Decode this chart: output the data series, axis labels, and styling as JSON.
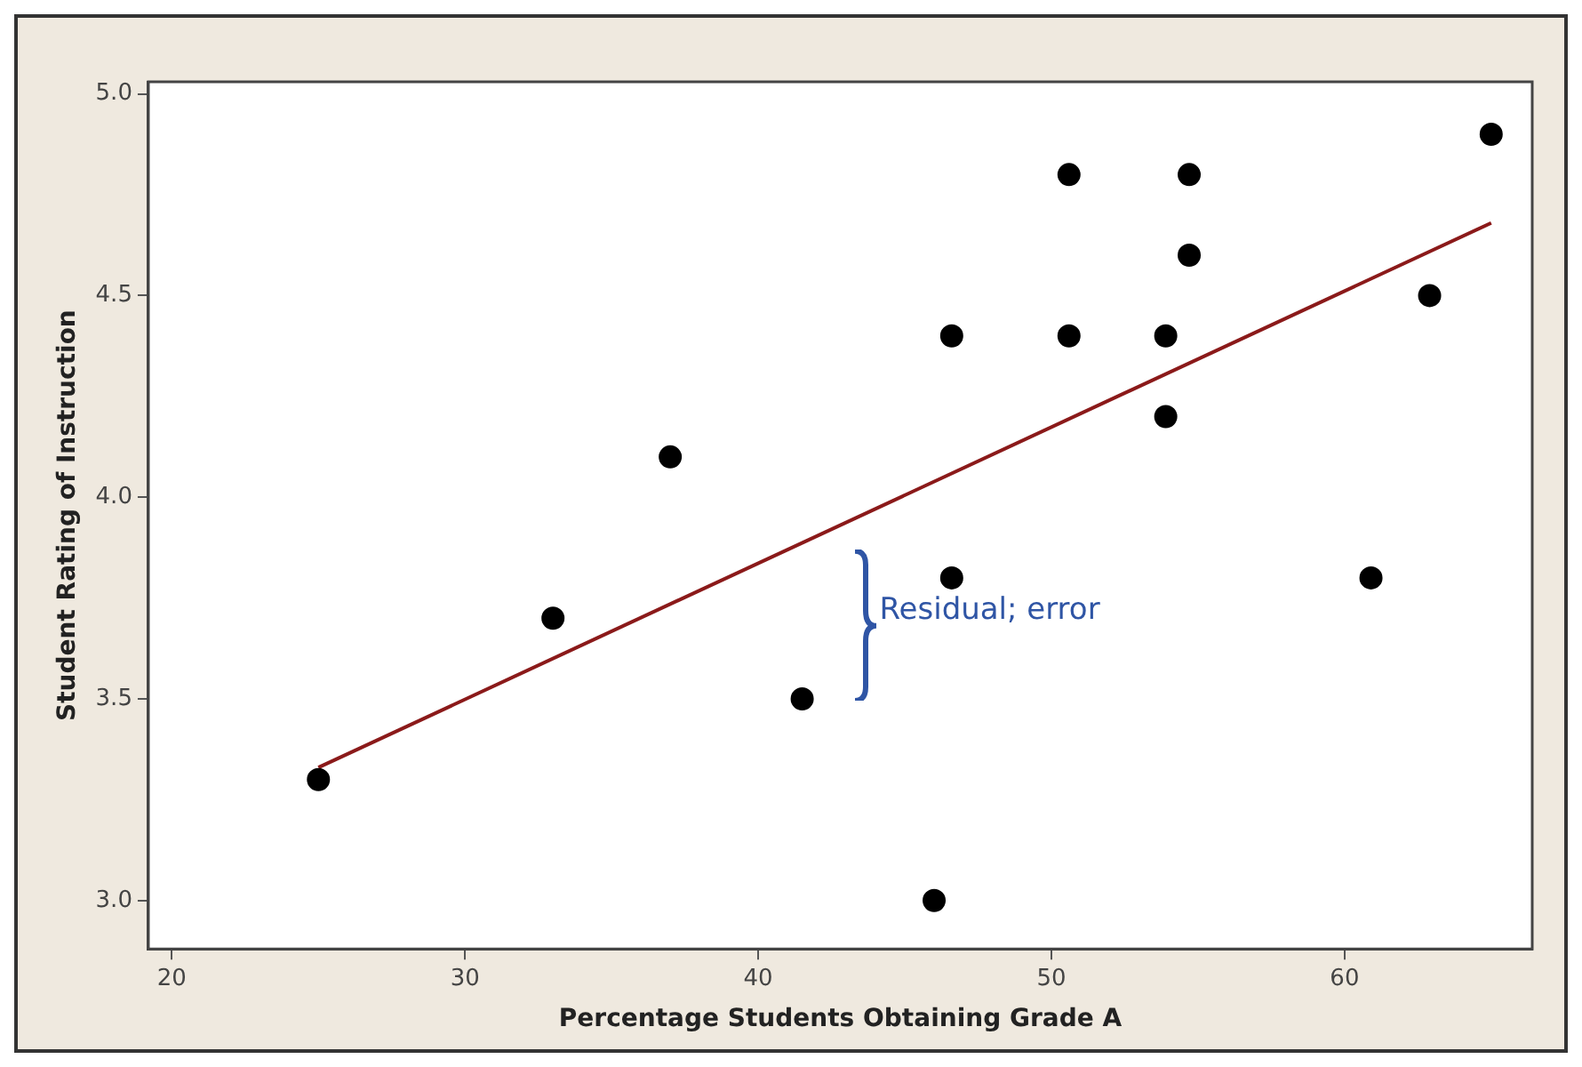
{
  "chart_data": {
    "type": "scatter",
    "xlabel": "Percentage Students Obtaining Grade A",
    "ylabel": "Student Rating of Instruction",
    "xlim": [
      19.2,
      66.4
    ],
    "xticks": [
      20,
      30,
      40,
      50,
      60
    ],
    "ylim": [
      2.88,
      5.03
    ],
    "yticks": [
      {
        "value": 3,
        "label": "3.0"
      },
      {
        "value": 3.5,
        "label": "3.5"
      },
      {
        "value": 4,
        "label": "4.0"
      },
      {
        "value": 4.5,
        "label": "4.5"
      },
      {
        "value": 5,
        "label": "5.0"
      }
    ],
    "grid": false,
    "legend": false,
    "marker": "circle",
    "series": [
      {
        "color": "#000000",
        "x": [
          25,
          33,
          37,
          41.5,
          46,
          46.6,
          46.6,
          50.6,
          50.6,
          53.9,
          53.9,
          54.7,
          54.7,
          60.9,
          62.9,
          65
        ],
        "values": [
          3.3,
          3.7,
          4.1,
          3.5,
          3.0,
          3.8,
          4.4,
          4.4,
          4.8,
          4.4,
          4.2,
          4.8,
          4.6,
          3.8,
          4.5,
          4.9
        ]
      },
      {
        "type": "line",
        "color": "#8b1a1a",
        "marker": "none",
        "line_style": "solid",
        "x": [
          25,
          65
        ],
        "values": [
          3.33,
          4.68
        ]
      }
    ],
    "annotations": [
      "Residual; error"
    ]
  }
}
